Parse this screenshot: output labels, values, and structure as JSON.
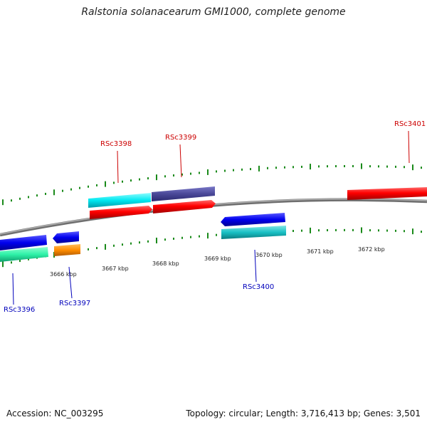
{
  "title": "Ralstonia solanacearum GMI1000, complete genome",
  "footer": {
    "accession": "Accession: NC_003295",
    "summary": "Topology: circular; Length: 3,716,413 bp; Genes: 3,501"
  },
  "colors": {
    "backbone": "#8a8a8a",
    "tick": "#1a8a1a",
    "forward_label": "#cc0000",
    "reverse_label": "#0000bb"
  },
  "axis_ticks": [
    {
      "label": "3666 kbp"
    },
    {
      "label": "3667 kbp"
    },
    {
      "label": "3668 kbp"
    },
    {
      "label": "3669 kbp"
    },
    {
      "label": "3670 kbp"
    },
    {
      "label": "3671 kbp"
    },
    {
      "label": "3672 kbp"
    }
  ],
  "gene_labels": [
    {
      "id": "RSc3396",
      "strand": "reverse"
    },
    {
      "id": "RSc3397",
      "strand": "reverse"
    },
    {
      "id": "RSc3398",
      "strand": "forward"
    },
    {
      "id": "RSc3399",
      "strand": "forward"
    },
    {
      "id": "RSc3400",
      "strand": "reverse"
    },
    {
      "id": "RSc3401",
      "strand": "forward"
    }
  ]
}
